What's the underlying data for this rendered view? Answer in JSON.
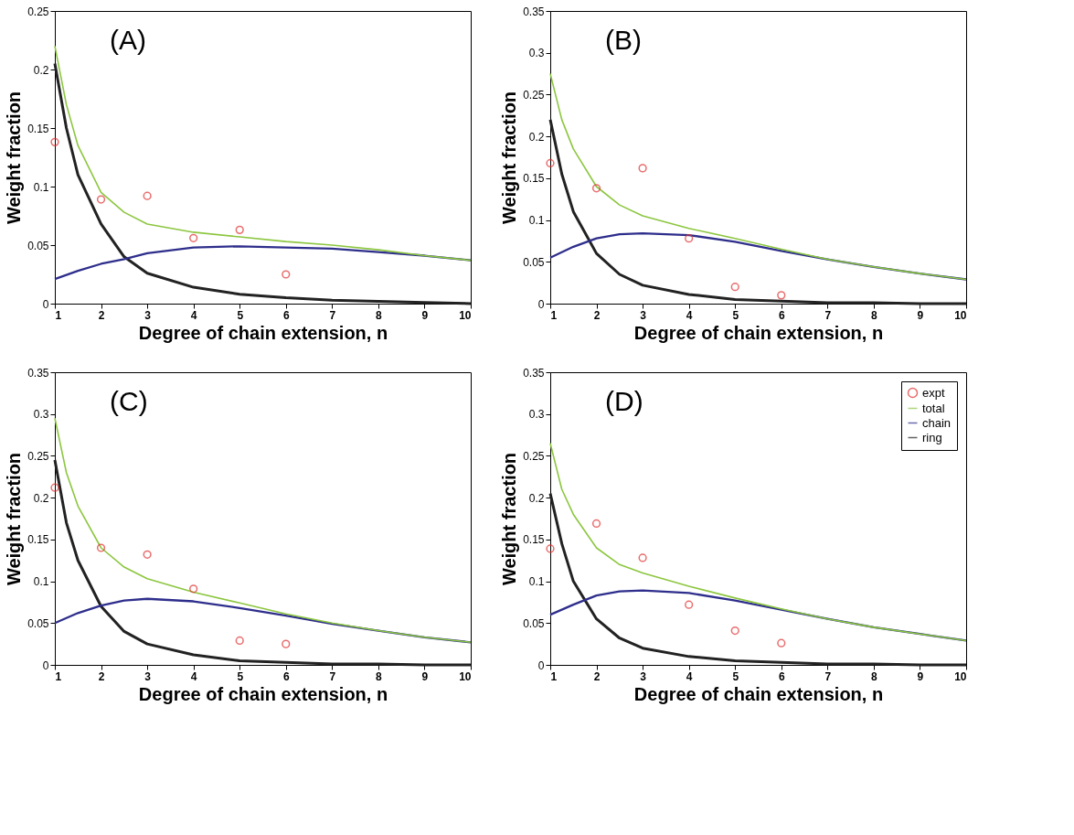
{
  "chart_data": [
    {
      "type": "line",
      "annotations": [
        "(A)"
      ],
      "xlabel": "Degree of chain extension, n",
      "ylabel": "Weight fraction",
      "xlim": [
        1,
        10
      ],
      "xticks": [
        1,
        2,
        3,
        4,
        5,
        6,
        7,
        8,
        9,
        10
      ],
      "ylim": [
        0,
        0.25
      ],
      "yticks": [
        0,
        0.05,
        0.1,
        0.15,
        0.2,
        0.25
      ],
      "legend": false,
      "series": [
        {
          "type": "scatter",
          "marker": "circle",
          "color": "#e03030",
          "x": [
            1,
            2,
            3,
            4,
            5,
            6
          ],
          "values": [
            0.138,
            0.089,
            0.092,
            0.056,
            0.063,
            0.025
          ]
        },
        {
          "type": "line",
          "color": "#8cc63f",
          "x": [
            1,
            1.25,
            1.5,
            2,
            2.5,
            3,
            4,
            5,
            6,
            7,
            8,
            9,
            10
          ],
          "values": [
            0.22,
            0.17,
            0.135,
            0.095,
            0.078,
            0.068,
            0.061,
            0.057,
            0.053,
            0.05,
            0.046,
            0.041,
            0.037
          ]
        },
        {
          "type": "line",
          "color": "#2e2e8c",
          "x": [
            1,
            1.5,
            2,
            2.5,
            3,
            4,
            5,
            6,
            7,
            8,
            9,
            10
          ],
          "values": [
            0.021,
            0.028,
            0.034,
            0.038,
            0.043,
            0.048,
            0.049,
            0.048,
            0.047,
            0.044,
            0.041,
            0.037
          ]
        },
        {
          "type": "line",
          "color": "#222222",
          "x": [
            1,
            1.25,
            1.5,
            2,
            2.5,
            3,
            4,
            5,
            6,
            7,
            8,
            9,
            10
          ],
          "values": [
            0.205,
            0.15,
            0.11,
            0.068,
            0.04,
            0.026,
            0.014,
            0.008,
            0.005,
            0.003,
            0.002,
            0.001,
            0.0
          ]
        }
      ]
    },
    {
      "type": "line",
      "annotations": [
        "(B)"
      ],
      "xlabel": "Degree of chain extension, n",
      "ylabel": "Weight fraction",
      "xlim": [
        1,
        10
      ],
      "xticks": [
        1,
        2,
        3,
        4,
        5,
        6,
        7,
        8,
        9,
        10
      ],
      "ylim": [
        0,
        0.35
      ],
      "yticks": [
        0,
        0.05,
        0.1,
        0.15,
        0.2,
        0.25,
        0.3,
        0.35
      ],
      "legend": false,
      "series": [
        {
          "type": "scatter",
          "marker": "circle",
          "color": "#e03030",
          "x": [
            1,
            2,
            3,
            4,
            5,
            6
          ],
          "values": [
            0.168,
            0.138,
            0.162,
            0.078,
            0.02,
            0.01
          ]
        },
        {
          "type": "line",
          "color": "#8cc63f",
          "x": [
            1,
            1.25,
            1.5,
            2,
            2.5,
            3,
            4,
            5,
            6,
            7,
            8,
            9,
            10
          ],
          "values": [
            0.275,
            0.22,
            0.185,
            0.14,
            0.118,
            0.105,
            0.09,
            0.078,
            0.065,
            0.053,
            0.044,
            0.036,
            0.029
          ]
        },
        {
          "type": "line",
          "color": "#2e2e8c",
          "x": [
            1,
            1.5,
            2,
            2.5,
            3,
            4,
            5,
            6,
            7,
            8,
            9,
            10
          ],
          "values": [
            0.055,
            0.068,
            0.078,
            0.083,
            0.084,
            0.082,
            0.074,
            0.063,
            0.053,
            0.044,
            0.036,
            0.029
          ]
        },
        {
          "type": "line",
          "color": "#222222",
          "x": [
            1,
            1.25,
            1.5,
            2,
            2.5,
            3,
            4,
            5,
            6,
            7,
            8,
            9,
            10
          ],
          "values": [
            0.22,
            0.155,
            0.11,
            0.06,
            0.035,
            0.022,
            0.011,
            0.005,
            0.003,
            0.001,
            0.001,
            0.0,
            0.0
          ]
        }
      ]
    },
    {
      "type": "line",
      "annotations": [
        "(C)"
      ],
      "xlabel": "Degree of chain extension, n",
      "ylabel": "Weight fraction",
      "xlim": [
        1,
        10
      ],
      "xticks": [
        1,
        2,
        3,
        4,
        5,
        6,
        7,
        8,
        9,
        10
      ],
      "ylim": [
        0,
        0.35
      ],
      "yticks": [
        0,
        0.05,
        0.1,
        0.15,
        0.2,
        0.25,
        0.3,
        0.35
      ],
      "legend": false,
      "series": [
        {
          "type": "scatter",
          "marker": "circle",
          "color": "#e03030",
          "x": [
            1,
            2,
            3,
            4,
            5,
            6
          ],
          "values": [
            0.212,
            0.14,
            0.132,
            0.091,
            0.029,
            0.025
          ]
        },
        {
          "type": "line",
          "color": "#8cc63f",
          "x": [
            1,
            1.25,
            1.5,
            2,
            2.5,
            3,
            4,
            5,
            6,
            7,
            8,
            9,
            10
          ],
          "values": [
            0.295,
            0.23,
            0.19,
            0.14,
            0.117,
            0.103,
            0.087,
            0.074,
            0.061,
            0.05,
            0.041,
            0.033,
            0.027
          ]
        },
        {
          "type": "line",
          "color": "#2e2e8c",
          "x": [
            1,
            1.5,
            2,
            2.5,
            3,
            4,
            5,
            6,
            7,
            8,
            9,
            10
          ],
          "values": [
            0.05,
            0.062,
            0.071,
            0.077,
            0.079,
            0.076,
            0.068,
            0.059,
            0.049,
            0.041,
            0.033,
            0.027
          ]
        },
        {
          "type": "line",
          "color": "#222222",
          "x": [
            1,
            1.25,
            1.5,
            2,
            2.5,
            3,
            4,
            5,
            6,
            7,
            8,
            9,
            10
          ],
          "values": [
            0.245,
            0.17,
            0.125,
            0.07,
            0.04,
            0.025,
            0.012,
            0.005,
            0.003,
            0.001,
            0.001,
            0.0,
            0.0
          ]
        }
      ]
    },
    {
      "type": "line",
      "annotations": [
        "(D)"
      ],
      "xlabel": "Degree of chain extension, n",
      "ylabel": "Weight fraction",
      "xlim": [
        1,
        10
      ],
      "xticks": [
        1,
        2,
        3,
        4,
        5,
        6,
        7,
        8,
        9,
        10
      ],
      "ylim": [
        0,
        0.35
      ],
      "yticks": [
        0,
        0.05,
        0.1,
        0.15,
        0.2,
        0.25,
        0.3,
        0.35
      ],
      "legend": "top right",
      "series": [
        {
          "name": "expt",
          "type": "scatter",
          "marker": "circle",
          "color": "#e03030",
          "x": [
            1,
            2,
            3,
            4,
            5,
            6
          ],
          "values": [
            0.139,
            0.169,
            0.128,
            0.072,
            0.041,
            0.026
          ]
        },
        {
          "name": "total",
          "type": "line",
          "color": "#8cc63f",
          "x": [
            1,
            1.25,
            1.5,
            2,
            2.5,
            3,
            4,
            5,
            6,
            7,
            8,
            9,
            10
          ],
          "values": [
            0.265,
            0.21,
            0.18,
            0.14,
            0.12,
            0.11,
            0.094,
            0.08,
            0.067,
            0.055,
            0.045,
            0.037,
            0.029
          ]
        },
        {
          "name": "chain",
          "type": "line",
          "color": "#2e2e8c",
          "x": [
            1,
            1.5,
            2,
            2.5,
            3,
            4,
            5,
            6,
            7,
            8,
            9,
            10
          ],
          "values": [
            0.06,
            0.072,
            0.083,
            0.088,
            0.089,
            0.086,
            0.077,
            0.066,
            0.055,
            0.045,
            0.037,
            0.029
          ]
        },
        {
          "name": "ring",
          "type": "line",
          "color": "#222222",
          "x": [
            1,
            1.25,
            1.5,
            2,
            2.5,
            3,
            4,
            5,
            6,
            7,
            8,
            9,
            10
          ],
          "values": [
            0.205,
            0.145,
            0.1,
            0.055,
            0.032,
            0.02,
            0.01,
            0.005,
            0.003,
            0.001,
            0.001,
            0.0,
            0.0
          ]
        }
      ]
    }
  ]
}
